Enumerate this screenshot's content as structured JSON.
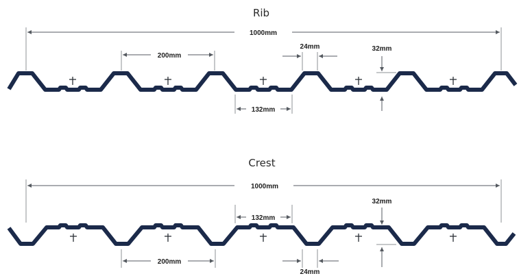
{
  "rib": {
    "title": "Rib",
    "dim_total": "1000mm",
    "dim_pitch": "200mm",
    "dim_pan": "132mm",
    "dim_rib_top": "24mm",
    "dim_height": "32mm"
  },
  "crest": {
    "title": "Crest",
    "dim_total": "1000mm",
    "dim_pitch": "200mm",
    "dim_pan": "132mm",
    "dim_rib_top": "24mm",
    "dim_height": "32mm"
  },
  "colors": {
    "profile": "#1b2a4a",
    "dimension": "#555a60"
  }
}
